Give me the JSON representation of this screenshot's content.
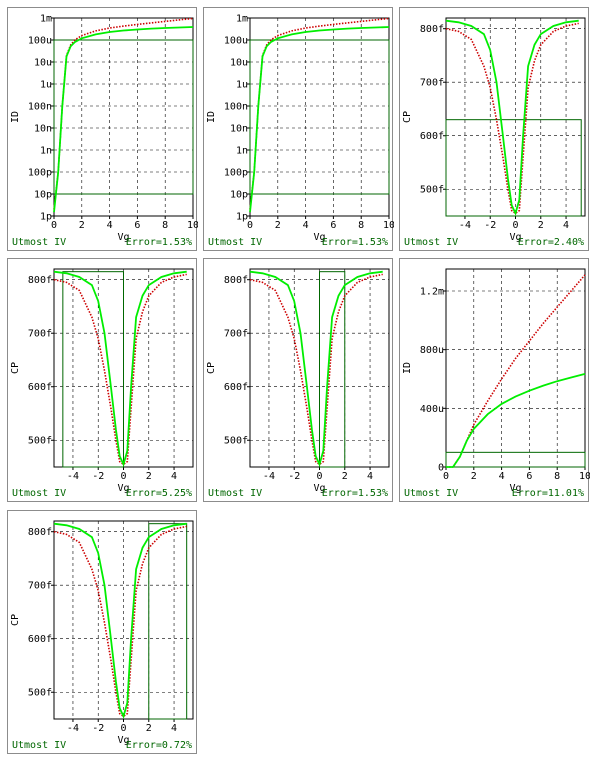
{
  "colors": {
    "measured": "#cc0000",
    "simulated": "#00ee00",
    "window": "#006600",
    "grid": "#000000",
    "text_footer": "#006600"
  },
  "chart_data": [
    {
      "type": "line",
      "y_scale": "log",
      "xlabel": "Vg",
      "ylabel": "ID",
      "xlim": [
        0,
        10
      ],
      "ylim": [
        1e-12,
        0.001
      ],
      "x_ticks": [
        0,
        2,
        4,
        6,
        8,
        10
      ],
      "x_tick_labels": [
        "0",
        "2",
        "4",
        "6",
        "8",
        "10"
      ],
      "y_ticks": [
        1e-12,
        1e-11,
        1e-10,
        1e-09,
        1e-08,
        1e-07,
        1e-06,
        1e-05,
        0.0001,
        0.001
      ],
      "y_tick_labels": [
        "1p",
        "10p",
        "100p",
        "1n",
        "10n",
        "100n",
        "1u",
        "10u",
        "100u",
        "1m"
      ],
      "window": {
        "x": [
          0,
          10
        ],
        "y": [
          1e-11,
          0.0001
        ]
      },
      "series": [
        {
          "role": "measured",
          "x": [
            0,
            0.3,
            0.6,
            0.9,
            1.2,
            1.5,
            2,
            3,
            4,
            5,
            6,
            7,
            8,
            9,
            10
          ],
          "y": [
            2e-12,
            1e-10,
            1e-07,
            2e-05,
            6e-05,
            0.0001,
            0.00016,
            0.00026,
            0.00035,
            0.00043,
            0.00051,
            0.0006,
            0.0007,
            0.00082,
            0.00095
          ]
        },
        {
          "role": "simulated",
          "x": [
            0,
            0.3,
            0.6,
            0.9,
            1.2,
            1.5,
            2,
            3,
            4,
            5,
            6,
            7,
            8,
            9,
            10
          ],
          "y": [
            1.5e-12,
            1e-10,
            1e-07,
            1.8e-05,
            5.2e-05,
            8e-05,
            0.00012,
            0.00018,
            0.00023,
            0.00027,
            0.0003,
            0.00033,
            0.00035,
            0.00037,
            0.00039
          ]
        }
      ],
      "footer": {
        "left": "Utmost IV",
        "right": "Error=1.53%"
      }
    },
    {
      "type": "line",
      "y_scale": "log",
      "xlabel": "Vg",
      "ylabel": "ID",
      "xlim": [
        0,
        10
      ],
      "ylim": [
        1e-12,
        0.001
      ],
      "x_ticks": [
        0,
        2,
        4,
        6,
        8,
        10
      ],
      "x_tick_labels": [
        "0",
        "2",
        "4",
        "6",
        "8",
        "10"
      ],
      "y_ticks": [
        1e-12,
        1e-11,
        1e-10,
        1e-09,
        1e-08,
        1e-07,
        1e-06,
        1e-05,
        0.0001,
        0.001
      ],
      "y_tick_labels": [
        "1p",
        "10p",
        "100p",
        "1n",
        "10n",
        "100n",
        "1u",
        "10u",
        "100u",
        "1m"
      ],
      "window": {
        "x": [
          0,
          10
        ],
        "y": [
          1e-11,
          0.0001
        ]
      },
      "series": [
        {
          "role": "measured",
          "x": [
            0,
            0.3,
            0.6,
            0.9,
            1.2,
            1.5,
            2,
            3,
            4,
            5,
            6,
            7,
            8,
            9,
            10
          ],
          "y": [
            2e-12,
            1e-10,
            1e-07,
            2e-05,
            6e-05,
            0.0001,
            0.00016,
            0.00026,
            0.00035,
            0.00043,
            0.00051,
            0.0006,
            0.0007,
            0.00082,
            0.00095
          ]
        },
        {
          "role": "simulated",
          "x": [
            0,
            0.3,
            0.6,
            0.9,
            1.2,
            1.5,
            2,
            3,
            4,
            5,
            6,
            7,
            8,
            9,
            10
          ],
          "y": [
            1.5e-12,
            1e-10,
            1e-07,
            1.8e-05,
            5.2e-05,
            8e-05,
            0.00012,
            0.00018,
            0.00023,
            0.00027,
            0.0003,
            0.00033,
            0.00035,
            0.00037,
            0.00039
          ]
        }
      ],
      "footer": {
        "left": "Utmost IV",
        "right": "Error=1.53%"
      }
    },
    {
      "type": "line",
      "y_scale": "linear",
      "xlabel": "Vg",
      "ylabel": "CP",
      "xlim": [
        -5.5,
        5.5
      ],
      "ylim": [
        4.5e-13,
        8.2e-13
      ],
      "x_ticks": [
        -4,
        -2,
        0,
        2,
        4
      ],
      "x_tick_labels": [
        "-4",
        "-2",
        "0",
        "2",
        "4"
      ],
      "y_ticks": [
        5e-13,
        6e-13,
        7e-13,
        8e-13
      ],
      "y_tick_labels": [
        "500f",
        "600f",
        "700f",
        "800f"
      ],
      "window": {
        "x": [
          -5.5,
          5.2
        ],
        "y": [
          4.5e-13,
          6.3e-13
        ]
      },
      "series": [
        {
          "role": "measured",
          "x": [
            -5.5,
            -4.5,
            -3.5,
            -2.5,
            -2,
            -1.5,
            -1,
            -0.6,
            -0.3,
            0,
            0.3,
            0.6,
            1,
            1.5,
            2,
            3,
            4,
            5
          ],
          "y": [
            8e-13,
            7.95e-13,
            7.8e-13,
            7.3e-13,
            6.9e-13,
            6.3e-13,
            5.6e-13,
            5e-13,
            4.6e-13,
            4.55e-13,
            4.6e-13,
            5.6e-13,
            6.9e-13,
            7.4e-13,
            7.7e-13,
            7.95e-13,
            8.05e-13,
            8.1e-13
          ]
        },
        {
          "role": "simulated",
          "x": [
            -5.5,
            -4.5,
            -3.5,
            -2.5,
            -2,
            -1.5,
            -1,
            -0.6,
            -0.3,
            0,
            0.3,
            0.6,
            1,
            1.5,
            2,
            3,
            4,
            5
          ],
          "y": [
            8.15e-13,
            8.12e-13,
            8.05e-13,
            7.9e-13,
            7.6e-13,
            7e-13,
            6e-13,
            5.2e-13,
            4.7e-13,
            4.55e-13,
            4.8e-13,
            6e-13,
            7.3e-13,
            7.7e-13,
            7.9e-13,
            8.05e-13,
            8.12e-13,
            8.15e-13
          ]
        }
      ],
      "footer": {
        "left": "Utmost IV",
        "right": "Error=2.40%"
      }
    },
    {
      "type": "line",
      "y_scale": "linear",
      "xlabel": "Vg",
      "ylabel": "CP",
      "xlim": [
        -5.5,
        5.5
      ],
      "ylim": [
        4.5e-13,
        8.2e-13
      ],
      "x_ticks": [
        -4,
        -2,
        0,
        2,
        4
      ],
      "x_tick_labels": [
        "-4",
        "-2",
        "0",
        "2",
        "4"
      ],
      "y_ticks": [
        5e-13,
        6e-13,
        7e-13,
        8e-13
      ],
      "y_tick_labels": [
        "500f",
        "600f",
        "700f",
        "800f"
      ],
      "window": {
        "x": [
          -4.8,
          0
        ],
        "y": [
          4.5e-13,
          8.15e-13
        ]
      },
      "series": [
        {
          "role": "measured",
          "x": [
            -5.5,
            -4.5,
            -3.5,
            -2.5,
            -2,
            -1.5,
            -1,
            -0.6,
            -0.3,
            0,
            0.3,
            0.6,
            1,
            1.5,
            2,
            3,
            4,
            5
          ],
          "y": [
            8e-13,
            7.95e-13,
            7.8e-13,
            7.3e-13,
            6.9e-13,
            6.3e-13,
            5.6e-13,
            5e-13,
            4.6e-13,
            4.55e-13,
            4.6e-13,
            5.6e-13,
            6.9e-13,
            7.4e-13,
            7.7e-13,
            7.95e-13,
            8.05e-13,
            8.1e-13
          ]
        },
        {
          "role": "simulated",
          "x": [
            -5.5,
            -4.5,
            -3.5,
            -2.5,
            -2,
            -1.5,
            -1,
            -0.6,
            -0.3,
            0,
            0.3,
            0.6,
            1,
            1.5,
            2,
            3,
            4,
            5
          ],
          "y": [
            8.15e-13,
            8.12e-13,
            8.05e-13,
            7.9e-13,
            7.6e-13,
            7e-13,
            6e-13,
            5.2e-13,
            4.7e-13,
            4.55e-13,
            4.8e-13,
            6e-13,
            7.3e-13,
            7.7e-13,
            7.9e-13,
            8.05e-13,
            8.12e-13,
            8.15e-13
          ]
        }
      ],
      "footer": {
        "left": "Utmost IV",
        "right": "Error=5.25%"
      }
    },
    {
      "type": "line",
      "y_scale": "linear",
      "xlabel": "Vg",
      "ylabel": "CP",
      "xlim": [
        -5.5,
        5.5
      ],
      "ylim": [
        4.5e-13,
        8.2e-13
      ],
      "x_ticks": [
        -4,
        -2,
        0,
        2,
        4
      ],
      "x_tick_labels": [
        "-4",
        "-2",
        "0",
        "2",
        "4"
      ],
      "y_ticks": [
        5e-13,
        6e-13,
        7e-13,
        8e-13
      ],
      "y_tick_labels": [
        "500f",
        "600f",
        "700f",
        "800f"
      ],
      "window": {
        "x": [
          0,
          2
        ],
        "y": [
          4.5e-13,
          8.15e-13
        ]
      },
      "series": [
        {
          "role": "measured",
          "x": [
            -5.5,
            -4.5,
            -3.5,
            -2.5,
            -2,
            -1.5,
            -1,
            -0.6,
            -0.3,
            0,
            0.3,
            0.6,
            1,
            1.5,
            2,
            3,
            4,
            5
          ],
          "y": [
            8e-13,
            7.95e-13,
            7.8e-13,
            7.3e-13,
            6.9e-13,
            6.3e-13,
            5.6e-13,
            5e-13,
            4.6e-13,
            4.55e-13,
            4.6e-13,
            5.6e-13,
            6.9e-13,
            7.4e-13,
            7.7e-13,
            7.95e-13,
            8.05e-13,
            8.1e-13
          ]
        },
        {
          "role": "simulated",
          "x": [
            -5.5,
            -4.5,
            -3.5,
            -2.5,
            -2,
            -1.5,
            -1,
            -0.6,
            -0.3,
            0,
            0.3,
            0.6,
            1,
            1.5,
            2,
            3,
            4,
            5
          ],
          "y": [
            8.15e-13,
            8.12e-13,
            8.05e-13,
            7.9e-13,
            7.6e-13,
            7e-13,
            6e-13,
            5.2e-13,
            4.7e-13,
            4.55e-13,
            4.8e-13,
            6e-13,
            7.3e-13,
            7.7e-13,
            7.9e-13,
            8.05e-13,
            8.12e-13,
            8.15e-13
          ]
        }
      ],
      "footer": {
        "left": "Utmost IV",
        "right": "Error=1.53%"
      }
    },
    {
      "type": "line",
      "y_scale": "linear",
      "xlabel": "Vg",
      "ylabel": "ID",
      "xlim": [
        0,
        10
      ],
      "ylim": [
        0,
        0.00135
      ],
      "x_ticks": [
        0,
        2,
        4,
        6,
        8,
        10
      ],
      "x_tick_labels": [
        "0",
        "2",
        "4",
        "6",
        "8",
        "10"
      ],
      "y_ticks": [
        0,
        0.0004,
        0.0008,
        0.0012
      ],
      "y_tick_labels": [
        "0",
        "400u",
        "800u",
        "1.2m"
      ],
      "window": {
        "x": [
          0,
          10
        ],
        "y": [
          0,
          0.0001
        ]
      },
      "series": [
        {
          "role": "measured",
          "x": [
            0,
            0.5,
            1,
            1.5,
            2,
            3,
            4,
            5,
            6,
            7,
            8,
            9,
            10
          ],
          "y": [
            0,
            0,
            7e-05,
            0.00018,
            0.00029,
            0.00045,
            0.0006,
            0.00074,
            0.00086,
            0.00098,
            0.00109,
            0.0012,
            0.00131
          ]
        },
        {
          "role": "simulated",
          "x": [
            0,
            0.5,
            1,
            1.5,
            2,
            3,
            4,
            5,
            6,
            7,
            8,
            9,
            10
          ],
          "y": [
            0,
            0,
            7e-05,
            0.00018,
            0.00026,
            0.00036,
            0.00043,
            0.00048,
            0.00052,
            0.000555,
            0.000585,
            0.00061,
            0.000635
          ]
        }
      ],
      "footer": {
        "left": "Utmost IV",
        "right": "Error=11.01%"
      }
    },
    {
      "type": "line",
      "y_scale": "linear",
      "xlabel": "Vg",
      "ylabel": "CP",
      "xlim": [
        -5.5,
        5.5
      ],
      "ylim": [
        4.5e-13,
        8.2e-13
      ],
      "x_ticks": [
        -4,
        -2,
        0,
        2,
        4
      ],
      "x_tick_labels": [
        "-4",
        "-2",
        "0",
        "2",
        "4"
      ],
      "y_ticks": [
        5e-13,
        6e-13,
        7e-13,
        8e-13
      ],
      "y_tick_labels": [
        "500f",
        "600f",
        "700f",
        "800f"
      ],
      "window": {
        "x": [
          2,
          5
        ],
        "y": [
          4.5e-13,
          8.15e-13
        ]
      },
      "series": [
        {
          "role": "measured",
          "x": [
            -5.5,
            -4.5,
            -3.5,
            -2.5,
            -2,
            -1.5,
            -1,
            -0.6,
            -0.3,
            0,
            0.3,
            0.6,
            1,
            1.5,
            2,
            3,
            4,
            5
          ],
          "y": [
            8e-13,
            7.95e-13,
            7.8e-13,
            7.3e-13,
            6.9e-13,
            6.3e-13,
            5.6e-13,
            5e-13,
            4.6e-13,
            4.55e-13,
            4.6e-13,
            5.6e-13,
            6.9e-13,
            7.4e-13,
            7.7e-13,
            7.95e-13,
            8.05e-13,
            8.1e-13
          ]
        },
        {
          "role": "simulated",
          "x": [
            -5.5,
            -4.5,
            -3.5,
            -2.5,
            -2,
            -1.5,
            -1,
            -0.6,
            -0.3,
            0,
            0.3,
            0.6,
            1,
            1.5,
            2,
            3,
            4,
            5
          ],
          "y": [
            8.15e-13,
            8.12e-13,
            8.05e-13,
            7.9e-13,
            7.6e-13,
            7e-13,
            6e-13,
            5.2e-13,
            4.7e-13,
            4.55e-13,
            4.8e-13,
            6e-13,
            7.3e-13,
            7.7e-13,
            7.9e-13,
            8.05e-13,
            8.12e-13,
            8.15e-13
          ]
        }
      ],
      "footer": {
        "left": "Utmost IV",
        "right": "Error=0.72%"
      }
    }
  ]
}
